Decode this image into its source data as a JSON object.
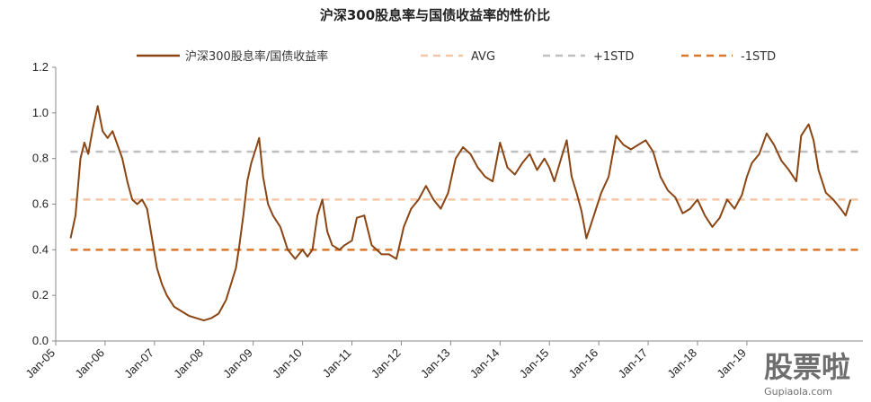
{
  "chart_data": {
    "type": "line",
    "title": "沪深300股息率与国债收益率的性价比",
    "xlabel": "",
    "ylabel": "",
    "ylim": [
      0.0,
      1.2
    ],
    "yticks": [
      "0.0",
      "0.2",
      "0.4",
      "0.6",
      "0.8",
      "1.0",
      "1.2"
    ],
    "xticks": [
      "Jan-05",
      "Jan-06",
      "Jan-07",
      "Jan-08",
      "Jan-09",
      "Jan-10",
      "Jan-11",
      "Jan-12",
      "Jan-13",
      "Jan-14",
      "Jan-15",
      "Jan-16",
      "Jan-17",
      "Jan-18",
      "Jan-19"
    ],
    "grid": false,
    "legend_position": "top",
    "colors": {
      "series": "#8B4513",
      "avg": "#F5C6A5",
      "plus1std": "#BFBFBF",
      "minus1std": "#D9782D"
    },
    "series": [
      {
        "name": "沪深300股息率/国债收益率",
        "x": [
          2005.3,
          2005.4,
          2005.5,
          2005.58,
          2005.66,
          2005.75,
          2005.85,
          2005.95,
          2006.05,
          2006.15,
          2006.25,
          2006.35,
          2006.45,
          2006.55,
          2006.65,
          2006.75,
          2006.85,
          2006.95,
          2007.05,
          2007.15,
          2007.25,
          2007.4,
          2007.55,
          2007.7,
          2007.85,
          2008.0,
          2008.15,
          2008.3,
          2008.45,
          2008.55,
          2008.65,
          2008.72,
          2008.8,
          2008.88,
          2008.96,
          2009.05,
          2009.12,
          2009.2,
          2009.3,
          2009.4,
          2009.55,
          2009.7,
          2009.85,
          2010.0,
          2010.1,
          2010.2,
          2010.3,
          2010.4,
          2010.5,
          2010.6,
          2010.75,
          2010.85,
          2011.0,
          2011.1,
          2011.25,
          2011.4,
          2011.5,
          2011.6,
          2011.75,
          2011.9,
          2012.05,
          2012.2,
          2012.35,
          2012.5,
          2012.65,
          2012.8,
          2012.95,
          2013.1,
          2013.25,
          2013.4,
          2013.55,
          2013.7,
          2013.85,
          2014.0,
          2014.15,
          2014.3,
          2014.45,
          2014.6,
          2014.75,
          2014.9,
          2015.0,
          2015.1,
          2015.25,
          2015.35,
          2015.45,
          2015.55,
          2015.65,
          2015.75,
          2015.9,
          2016.05,
          2016.2,
          2016.35,
          2016.5,
          2016.65,
          2016.8,
          2016.95,
          2017.1,
          2017.25,
          2017.4,
          2017.55,
          2017.7,
          2017.85,
          2018.0,
          2018.15,
          2018.3,
          2018.45,
          2018.6,
          2018.75,
          2018.9,
          2019.0,
          2019.1,
          2019.25,
          2019.4,
          2019.55,
          2019.7,
          2019.85,
          2020.0,
          2020.1,
          2020.25,
          2020.35,
          2020.45,
          2020.6,
          2020.75,
          2020.9,
          2021.0,
          2021.1
        ],
        "values": [
          0.45,
          0.55,
          0.8,
          0.87,
          0.82,
          0.93,
          1.03,
          0.92,
          0.89,
          0.92,
          0.86,
          0.8,
          0.7,
          0.62,
          0.6,
          0.62,
          0.58,
          0.45,
          0.32,
          0.25,
          0.2,
          0.15,
          0.13,
          0.11,
          0.1,
          0.09,
          0.1,
          0.12,
          0.18,
          0.25,
          0.32,
          0.42,
          0.55,
          0.7,
          0.78,
          0.84,
          0.89,
          0.72,
          0.6,
          0.55,
          0.5,
          0.4,
          0.36,
          0.4,
          0.37,
          0.4,
          0.55,
          0.62,
          0.48,
          0.42,
          0.4,
          0.42,
          0.44,
          0.54,
          0.55,
          0.42,
          0.4,
          0.38,
          0.38,
          0.36,
          0.5,
          0.58,
          0.62,
          0.68,
          0.62,
          0.58,
          0.65,
          0.8,
          0.85,
          0.82,
          0.76,
          0.72,
          0.7,
          0.87,
          0.76,
          0.73,
          0.78,
          0.82,
          0.75,
          0.8,
          0.76,
          0.7,
          0.81,
          0.88,
          0.72,
          0.65,
          0.57,
          0.45,
          0.55,
          0.65,
          0.72,
          0.9,
          0.86,
          0.84,
          0.86,
          0.88,
          0.83,
          0.72,
          0.66,
          0.63,
          0.56,
          0.58,
          0.62,
          0.55,
          0.5,
          0.54,
          0.62,
          0.58,
          0.64,
          0.72,
          0.78,
          0.82,
          0.91,
          0.86,
          0.79,
          0.75,
          0.7,
          0.9,
          0.95,
          0.88,
          0.75,
          0.65,
          0.62,
          0.58,
          0.55,
          0.62
        ]
      }
    ],
    "reference_lines": [
      {
        "name": "AVG",
        "value": 0.62
      },
      {
        "name": "+1STD",
        "value": 0.83
      },
      {
        "name": "-1STD",
        "value": 0.4
      }
    ]
  },
  "watermark": {
    "text": "股票啦",
    "url": "Gupiaola.com"
  }
}
